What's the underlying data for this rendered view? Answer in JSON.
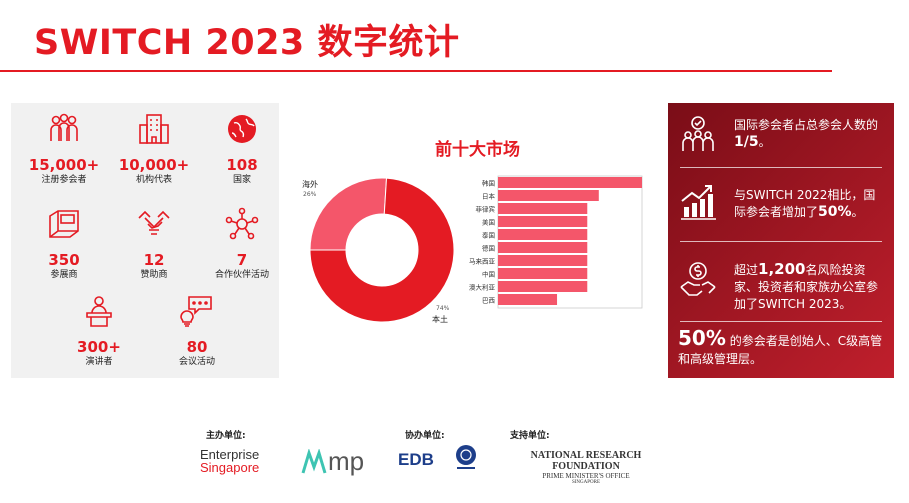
{
  "title": "SWITCH 2023 数字统计",
  "stats": [
    {
      "icon": "group-icon",
      "value": "15,000+",
      "label": "注册参会者"
    },
    {
      "icon": "building-icon",
      "value": "10,000+",
      "label": "机构代表"
    },
    {
      "icon": "globe-icon",
      "value": "108",
      "label": "国家"
    },
    {
      "icon": "booth-icon",
      "value": "350",
      "label": "参展商"
    },
    {
      "icon": "handshake-icon",
      "value": "12",
      "label": "赞助商"
    },
    {
      "icon": "network-icon",
      "value": "7",
      "label": "合作伙伴活动"
    },
    {
      "icon": "speaker-icon",
      "value": "300+",
      "label": "演讲者"
    },
    {
      "icon": "chat-bulb-icon",
      "value": "80",
      "label": "会议活动"
    }
  ],
  "chart_data": [
    {
      "type": "pie",
      "title": "",
      "categories": [
        "海外",
        "本土"
      ],
      "values": [
        26,
        74
      ],
      "value_labels": [
        "26%",
        "74%"
      ],
      "colors": [
        "#f4566a",
        "#e41b23"
      ]
    },
    {
      "type": "bar",
      "orientation": "horizontal",
      "title": "前十大市场",
      "categories": [
        "韩国",
        "日本",
        "菲律宾",
        "美国",
        "泰国",
        "德国",
        "马来西亚",
        "中国",
        "澳大利亚",
        "巴西"
      ],
      "values": [
        100,
        70,
        62,
        62,
        62,
        62,
        62,
        62,
        62,
        41
      ],
      "colors": {
        "bar": "#f4566a",
        "grid": "#cccccc"
      }
    }
  ],
  "right_panel": {
    "item1": {
      "icon": "people-check-icon",
      "text_a": "国际参会者占总参会人数的",
      "text_b": "1/5",
      "text_c": "。"
    },
    "item2": {
      "icon": "growth-chart-icon",
      "text_a": "与SWITCH 2022相比，国际参会者增加了",
      "text_b": "50%",
      "text_c": "。"
    },
    "item3": {
      "icon": "investor-icon",
      "text_a": "超过",
      "text_b": "1,200",
      "text_c": "名风险投资家、投资者和家族办公室参加了SWITCH 2023。"
    },
    "item4": {
      "big": "50%",
      "text": " 的参会者是创始人、C级高管和高级管理层。"
    }
  },
  "sponsors": {
    "host_label": "主办单位:",
    "co_label": "协办单位:",
    "support_label": "支持单位:",
    "logos": {
      "es_line1": "Enterprise",
      "es_line2": "Singapore",
      "imp": "mp",
      "edb": "EDB",
      "nrf_line1": "NATIONAL RESEARCH FOUNDATION",
      "nrf_line2": "PRIME MINISTER'S OFFICE",
      "nrf_line3": "SINGAPORE"
    }
  }
}
